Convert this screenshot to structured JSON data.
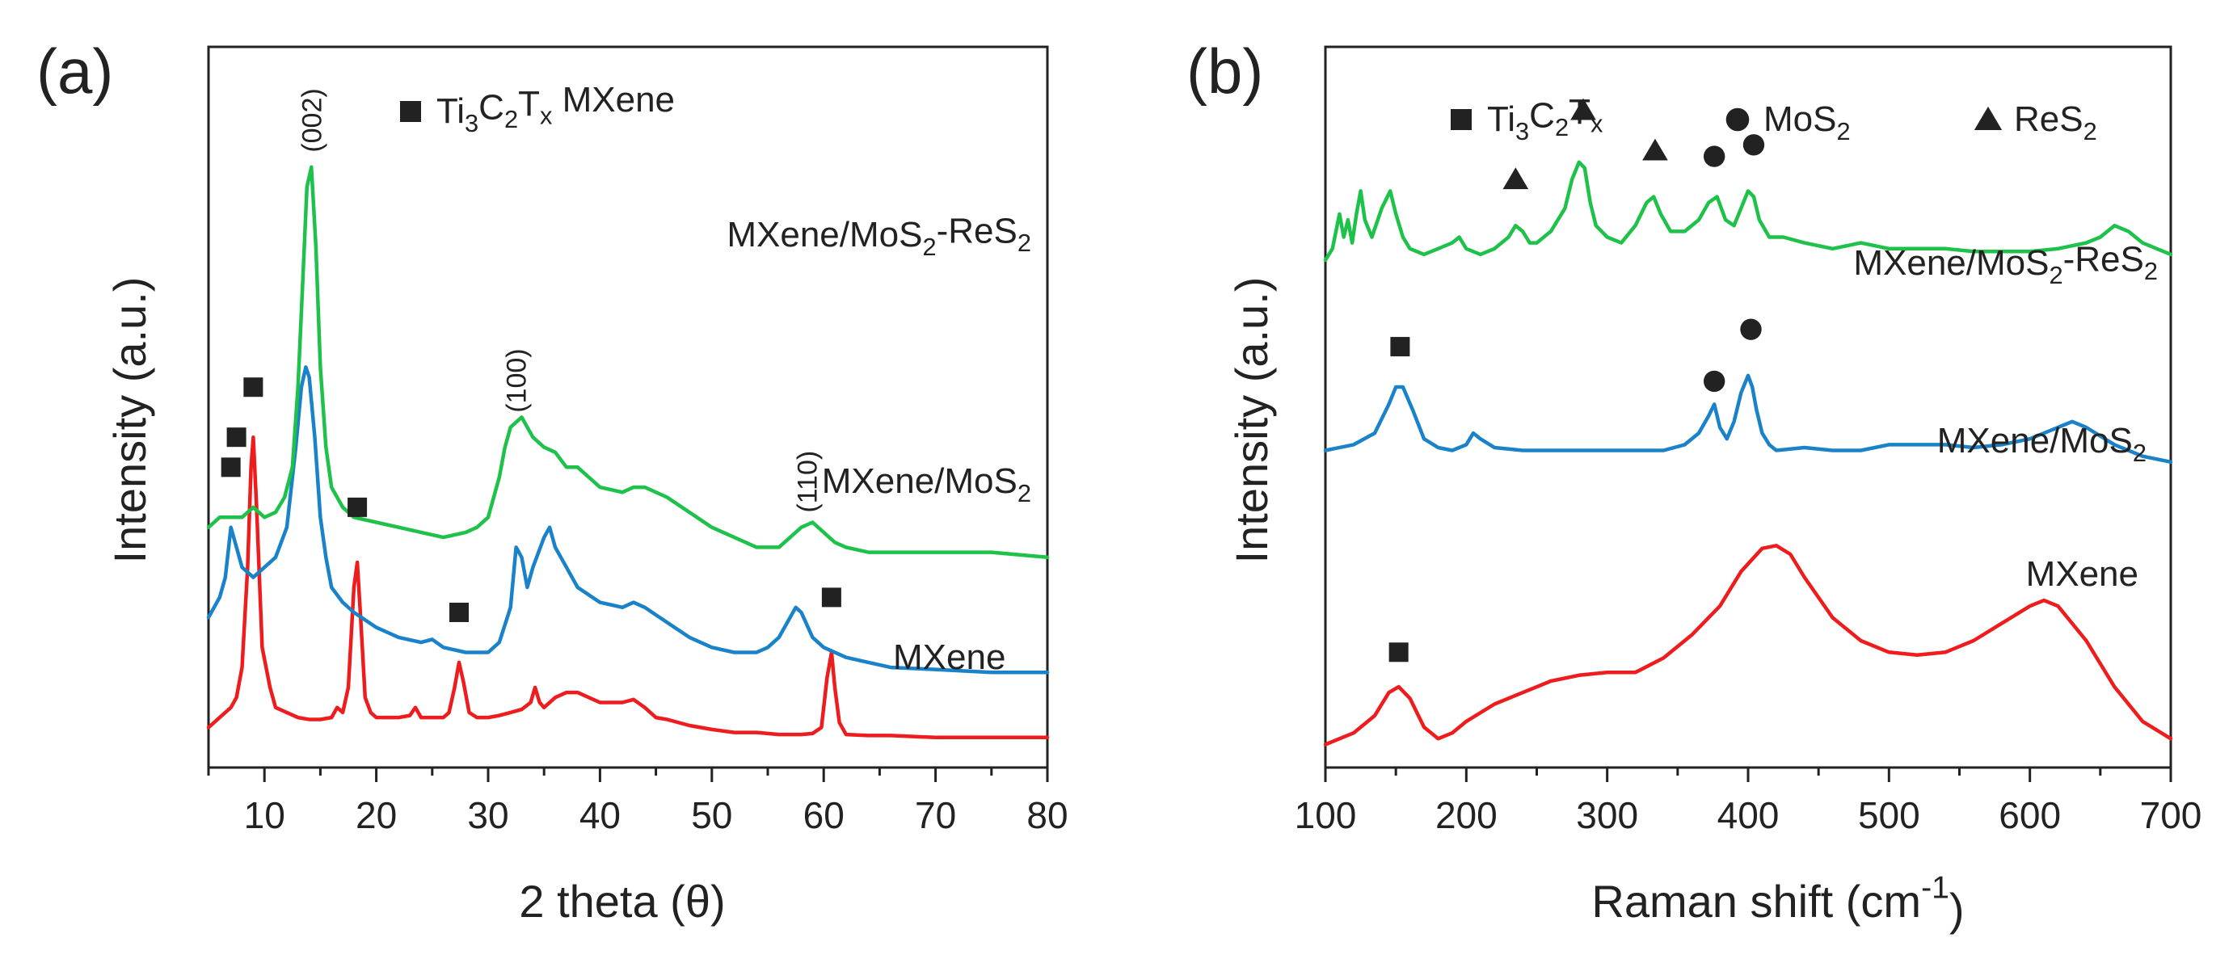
{
  "chart_data": [
    {
      "type": "line",
      "panel": "(a)",
      "xlabel": "2 theta (θ)",
      "ylabel": "Intensity (a.u.)",
      "xlim": [
        5,
        80
      ],
      "xticks": [
        10,
        20,
        30,
        40,
        50,
        60,
        70,
        80
      ],
      "legend": [
        {
          "marker": "square",
          "label_parts": [
            "Ti",
            "3",
            "C",
            "2",
            "T",
            "x",
            " MXene"
          ]
        }
      ],
      "series": [
        {
          "name": "MXene",
          "label_parts": [
            "MXene"
          ],
          "color": "#ee1c1c",
          "x": [
            5,
            6,
            7,
            7.5,
            8,
            8.5,
            8.8,
            9,
            9.3,
            9.8,
            10.5,
            11,
            12,
            13,
            14,
            15,
            16,
            16.5,
            17,
            17.5,
            18,
            18.3,
            18.6,
            19,
            19.5,
            20,
            21,
            22,
            23,
            23.5,
            24,
            25,
            26,
            26.5,
            27,
            27.4,
            27.8,
            28.3,
            29,
            30,
            31,
            32,
            33,
            33.8,
            34.2,
            34.6,
            35,
            36,
            37,
            38,
            39,
            40,
            41,
            42,
            43,
            44,
            45,
            46,
            48,
            50,
            52,
            54,
            56,
            58,
            59,
            59.8,
            60.3,
            60.7,
            61,
            61.4,
            62,
            64,
            66,
            68,
            70,
            72,
            74,
            76,
            78,
            80
          ],
          "y": [
            4,
            5,
            6,
            7,
            10,
            20,
            30,
            33,
            26,
            12,
            8,
            6,
            5.5,
            5,
            4.8,
            4.8,
            5,
            6,
            5.5,
            8,
            18,
            20.5,
            15,
            7,
            5.5,
            5,
            5,
            5,
            5.2,
            6,
            5,
            5,
            5,
            5.5,
            8,
            10.5,
            8.5,
            5.5,
            5,
            5,
            5.2,
            5.5,
            5.8,
            6.5,
            8,
            6.5,
            6,
            7,
            7.5,
            7.5,
            7,
            6.5,
            6.5,
            6.5,
            6.8,
            6,
            5,
            4.8,
            4.2,
            3.8,
            3.5,
            3.5,
            3.3,
            3.3,
            3.4,
            4,
            9,
            11.5,
            8,
            4.5,
            3.3,
            3.2,
            3.2,
            3.1,
            3,
            3,
            3,
            3,
            3,
            3
          ]
        },
        {
          "name": "MXene/MoS2",
          "label_parts": [
            "MXene/MoS",
            "2"
          ],
          "color": "#1a82c8",
          "x": [
            5,
            6,
            6.5,
            7,
            7.5,
            8,
            9,
            10,
            11,
            12,
            12.8,
            13.3,
            13.7,
            14,
            14.5,
            15,
            15.5,
            16,
            17,
            18,
            20,
            22,
            24,
            25,
            26,
            28,
            30,
            31,
            32,
            32.5,
            33,
            33.5,
            34,
            35,
            35.5,
            36,
            37,
            38,
            40,
            42,
            43,
            44,
            46,
            48,
            50,
            52,
            54,
            55,
            56,
            57,
            57.5,
            58,
            59,
            60,
            62,
            64,
            66,
            70,
            75,
            80
          ],
          "y": [
            15,
            17,
            19,
            24,
            22,
            20,
            19,
            20,
            21,
            24,
            32,
            38,
            40,
            39,
            33,
            25,
            21,
            18,
            16.5,
            15.5,
            14,
            13,
            12.5,
            12.8,
            12,
            11.5,
            11.5,
            12.5,
            16,
            22,
            21,
            18,
            20,
            23,
            24,
            22,
            20,
            18,
            16.5,
            16,
            16.5,
            16,
            14.5,
            13,
            12,
            11.5,
            11.5,
            12,
            13,
            15,
            16,
            15.5,
            13,
            12,
            11,
            10.5,
            10,
            9.8,
            9.5,
            9.5
          ]
        },
        {
          "name": "MXene/MoS2-ReS2",
          "label_parts": [
            "MXene/MoS",
            "2",
            "-ReS",
            "2"
          ],
          "color": "#1ec24a",
          "x": [
            5,
            6,
            8,
            9,
            10,
            11,
            11.8,
            12.5,
            13,
            13.4,
            13.8,
            14.2,
            14.6,
            15,
            15.5,
            16,
            17,
            18,
            20,
            22,
            24,
            26,
            28,
            29,
            30,
            30.5,
            31,
            31.5,
            32,
            33,
            34,
            35,
            36,
            37,
            38,
            40,
            42,
            43,
            44,
            46,
            48,
            50,
            52,
            54,
            56,
            57,
            58,
            59,
            60,
            61,
            62,
            64,
            66,
            68,
            70,
            75,
            80
          ],
          "y": [
            24,
            25,
            25,
            26,
            25,
            25.5,
            27,
            30,
            38,
            48,
            58,
            60,
            52,
            40,
            32,
            28,
            26,
            25,
            24.5,
            24,
            23.5,
            23,
            23.5,
            24,
            25,
            27,
            29,
            32,
            34,
            35,
            33,
            32,
            31.5,
            30,
            30,
            28,
            27.5,
            28,
            28,
            27,
            25.5,
            24,
            23,
            22,
            22,
            23,
            24,
            24.5,
            23.5,
            22.5,
            22,
            21.5,
            21.5,
            21.5,
            21.5,
            21.5,
            21
          ]
        }
      ],
      "annotations": [
        {
          "text": "(002)",
          "x": 14.2
        },
        {
          "text": "(100)",
          "x": 32.5
        },
        {
          "text": "(110)",
          "x": 58.5
        }
      ],
      "markers": [
        {
          "series": "MXene",
          "x": 9,
          "y": 38
        },
        {
          "series": "MXene",
          "x": 18.3,
          "y": 26
        },
        {
          "series": "MXene",
          "x": 27.4,
          "y": 15.5
        },
        {
          "series": "MXene",
          "x": 60.7,
          "y": 17
        },
        {
          "series": "MXene/MoS2",
          "x": 7,
          "y": 30
        },
        {
          "series": "MXene/MoS2-ReS2",
          "x": 7.5,
          "y": 33
        }
      ]
    },
    {
      "type": "line",
      "panel": "(b)",
      "xlabel_parts": [
        "Raman shift (cm",
        "-1",
        ")"
      ],
      "ylabel": "Intensity (a.u.)",
      "xlim": [
        100,
        700
      ],
      "xticks": [
        100,
        200,
        300,
        400,
        500,
        600,
        700
      ],
      "legend": [
        {
          "marker": "square",
          "label_parts": [
            "Ti",
            "3",
            "C",
            "2",
            "T",
            "x"
          ]
        },
        {
          "marker": "circle",
          "label_parts": [
            "MoS",
            "2"
          ]
        },
        {
          "marker": "triangle",
          "label_parts": [
            "ReS",
            "2"
          ]
        }
      ],
      "series": [
        {
          "name": "MXene",
          "label_parts": [
            "MXene"
          ],
          "color": "#ee1c1c",
          "x": [
            100,
            120,
            135,
            145,
            152,
            160,
            170,
            180,
            190,
            200,
            220,
            240,
            260,
            280,
            300,
            320,
            340,
            360,
            380,
            395,
            410,
            420,
            430,
            440,
            460,
            480,
            500,
            520,
            540,
            560,
            580,
            600,
            610,
            620,
            640,
            660,
            680,
            700
          ],
          "y": [
            4,
            6,
            9,
            13,
            14,
            12,
            7,
            5,
            6,
            8,
            11,
            13,
            15,
            16,
            16.5,
            16.5,
            19,
            23,
            28,
            34,
            38,
            38.5,
            37,
            33,
            26,
            22,
            20,
            19.5,
            20,
            22,
            25,
            28,
            29,
            28,
            22,
            14,
            8,
            5
          ]
        },
        {
          "name": "MXene/MoS2",
          "label_parts": [
            "MXene/MoS",
            "2"
          ],
          "color": "#1a82c8",
          "x": [
            100,
            120,
            135,
            145,
            150,
            155,
            162,
            170,
            180,
            190,
            200,
            205,
            210,
            220,
            240,
            260,
            280,
            300,
            320,
            340,
            355,
            365,
            372,
            376,
            380,
            385,
            390,
            395,
            400,
            403,
            406,
            410,
            415,
            420,
            440,
            460,
            480,
            500,
            520,
            540,
            560,
            580,
            600,
            620,
            630,
            640,
            660,
            680,
            700
          ],
          "y": [
            55,
            56,
            58,
            63,
            66,
            66,
            62,
            57,
            55.5,
            55,
            56,
            58,
            57,
            55.5,
            55,
            55,
            55,
            55,
            55,
            55,
            56,
            58,
            61,
            63,
            59,
            57,
            60,
            65,
            68,
            66,
            62,
            58,
            56,
            55,
            55.5,
            55,
            55,
            56,
            56,
            56,
            55.5,
            56,
            57,
            59,
            60,
            59,
            56,
            54,
            53
          ]
        },
        {
          "name": "MXene/MoS2-ReS2",
          "label_parts": [
            "MXene/MoS",
            "2",
            "-ReS",
            "2"
          ],
          "color": "#1ec24a",
          "x": [
            100,
            105,
            110,
            113,
            116,
            119,
            122,
            125,
            128,
            133,
            140,
            146,
            150,
            155,
            160,
            170,
            180,
            190,
            195,
            200,
            210,
            220,
            230,
            235,
            240,
            245,
            250,
            260,
            270,
            275,
            280,
            284,
            288,
            292,
            300,
            310,
            320,
            328,
            333,
            338,
            345,
            355,
            365,
            372,
            378,
            384,
            390,
            395,
            400,
            404,
            408,
            415,
            425,
            440,
            460,
            480,
            500,
            520,
            540,
            560,
            580,
            600,
            620,
            640,
            650,
            660,
            670,
            680,
            690,
            700
          ],
          "y": [
            88,
            90,
            96,
            92,
            95,
            91,
            96,
            100,
            95,
            92,
            97,
            100,
            96,
            92,
            90,
            89,
            90,
            91,
            92,
            90,
            89,
            90,
            92,
            94,
            93,
            91,
            91,
            93,
            97,
            102,
            105,
            104,
            98,
            94,
            92,
            91,
            94,
            98,
            99,
            96,
            93,
            93,
            95,
            98,
            99,
            95,
            94,
            97,
            100,
            99,
            95,
            92,
            92,
            91,
            90,
            91,
            90,
            90,
            90,
            89.5,
            89.5,
            89.5,
            90,
            91,
            92,
            94,
            93,
            91,
            90,
            89
          ]
        }
      ],
      "markers": [
        {
          "series": "MXene",
          "type": "square",
          "x": 152,
          "y": 20
        },
        {
          "series": "MXene/MoS2",
          "type": "square",
          "x": 153,
          "y": 73
        },
        {
          "series": "MXene/MoS2",
          "type": "circle",
          "x": 376,
          "y": 67
        },
        {
          "series": "MXene/MoS2",
          "type": "circle",
          "x": 402,
          "y": 76
        },
        {
          "series": "MXene/MoS2-ReS2",
          "type": "triangle",
          "x": 235,
          "y": 102
        },
        {
          "series": "MXene/MoS2-ReS2",
          "type": "triangle",
          "x": 283,
          "y": 114
        },
        {
          "series": "MXene/MoS2-ReS2",
          "type": "triangle",
          "x": 334,
          "y": 107
        },
        {
          "series": "MXene/MoS2-ReS2",
          "type": "circle",
          "x": 376,
          "y": 106
        },
        {
          "series": "MXene/MoS2-ReS2",
          "type": "circle",
          "x": 404,
          "y": 108
        }
      ]
    }
  ]
}
